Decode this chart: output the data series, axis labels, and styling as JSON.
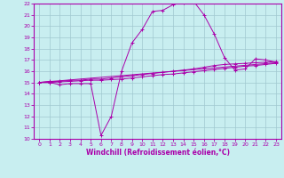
{
  "background_color": "#c8eef0",
  "grid_color": "#a0c8d0",
  "line_color": "#aa00aa",
  "xlabel": "Windchill (Refroidissement éolien,°C)",
  "xlim": [
    -0.5,
    23.5
  ],
  "ylim": [
    10,
    22
  ],
  "yticks": [
    10,
    11,
    12,
    13,
    14,
    15,
    16,
    17,
    18,
    19,
    20,
    21,
    22
  ],
  "xticks": [
    0,
    1,
    2,
    3,
    4,
    5,
    6,
    7,
    8,
    9,
    10,
    11,
    12,
    13,
    14,
    15,
    16,
    17,
    18,
    19,
    20,
    21,
    22,
    23
  ],
  "line1_x": [
    0,
    1,
    2,
    3,
    4,
    5,
    6,
    7,
    8,
    9,
    10,
    11,
    12,
    13,
    14,
    15,
    16,
    17,
    18,
    19,
    20,
    21,
    22,
    23
  ],
  "line1_y": [
    15.0,
    15.0,
    14.8,
    14.9,
    14.9,
    14.9,
    10.3,
    12.0,
    16.0,
    18.5,
    19.7,
    21.3,
    21.4,
    21.9,
    22.1,
    22.2,
    21.0,
    19.3,
    17.2,
    16.1,
    16.2,
    17.1,
    17.0,
    16.8
  ],
  "line2_x": [
    0,
    1,
    2,
    3,
    4,
    5,
    6,
    7,
    8,
    9,
    10,
    11,
    12,
    13,
    14,
    15,
    16,
    17,
    18,
    19,
    20,
    21,
    22,
    23
  ],
  "line2_y": [
    15.0,
    15.1,
    15.1,
    15.2,
    15.2,
    15.3,
    15.3,
    15.4,
    15.5,
    15.6,
    15.7,
    15.8,
    15.9,
    16.0,
    16.1,
    16.2,
    16.35,
    16.5,
    16.6,
    16.65,
    16.7,
    16.75,
    16.8,
    16.85
  ],
  "line3_x": [
    0,
    1,
    2,
    3,
    4,
    5,
    6,
    7,
    8,
    9,
    10,
    11,
    12,
    13,
    14,
    15,
    16,
    17,
    18,
    19,
    20,
    21,
    22,
    23
  ],
  "line3_y": [
    15.0,
    15.0,
    15.05,
    15.1,
    15.15,
    15.2,
    15.2,
    15.25,
    15.3,
    15.4,
    15.5,
    15.6,
    15.7,
    15.75,
    15.85,
    15.95,
    16.05,
    16.15,
    16.25,
    16.35,
    16.45,
    16.5,
    16.6,
    16.7
  ],
  "line4_x": [
    0,
    23
  ],
  "line4_y": [
    15.0,
    16.75
  ]
}
